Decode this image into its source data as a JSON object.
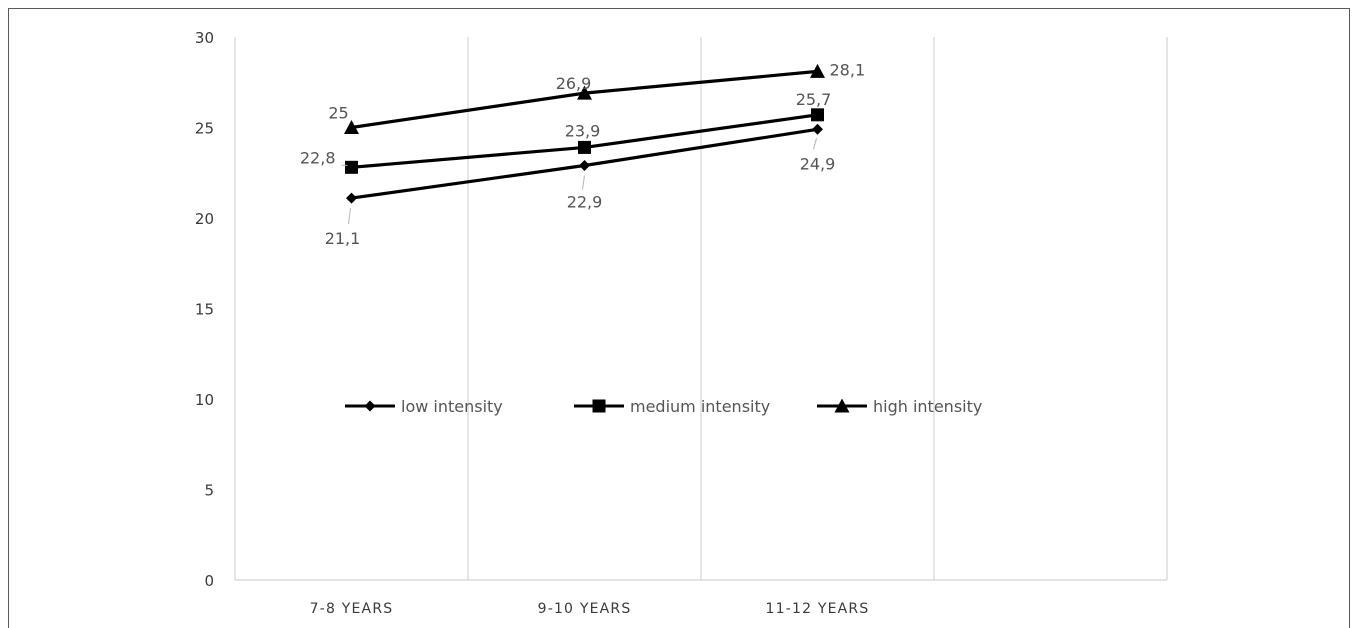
{
  "chart_data": {
    "type": "line",
    "categories": [
      "7-8 YEARS",
      "9-10 YEARS",
      "11-12 YEARS"
    ],
    "series": [
      {
        "name": "low intensity",
        "marker": "diamond",
        "values": [
          21.1,
          22.9,
          24.9
        ],
        "labels": [
          "21,1",
          "22,9",
          "24,9"
        ]
      },
      {
        "name": "medium intensity",
        "marker": "square",
        "values": [
          22.8,
          23.9,
          25.7
        ],
        "labels": [
          "22,8",
          "23,9",
          "25,7"
        ]
      },
      {
        "name": "high intensity",
        "marker": "triangle",
        "values": [
          25,
          26.9,
          28.1
        ],
        "labels": [
          "25",
          "26,9",
          "28,1"
        ]
      }
    ],
    "yticks": [
      "0",
      "5",
      "10",
      "15",
      "20",
      "25",
      "30"
    ],
    "ylim": [
      0,
      30
    ],
    "grid": "vertical",
    "legend": "center",
    "line_color": "#000000",
    "grid_color": "#d4d4d4"
  }
}
